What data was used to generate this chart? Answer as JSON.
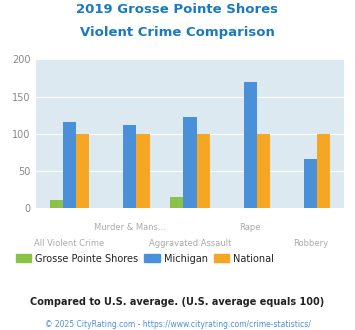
{
  "title_line1": "2019 Grosse Pointe Shores",
  "title_line2": "Violent Crime Comparison",
  "title_color": "#1a7abf",
  "cat_labels_row1": [
    "",
    "Murder & Mans...",
    "",
    "Rape",
    ""
  ],
  "cat_labels_row2": [
    "All Violent Crime",
    "",
    "Aggravated Assault",
    "",
    "Robbery"
  ],
  "grosse_pointe": [
    10,
    0,
    15,
    0,
    0
  ],
  "michigan": [
    116,
    112,
    123,
    170,
    66
  ],
  "national": [
    100,
    100,
    100,
    100,
    100
  ],
  "color_gps": "#8bc34a",
  "color_michigan": "#4a90d9",
  "color_national": "#f5a623",
  "ylim": [
    0,
    200
  ],
  "yticks": [
    0,
    50,
    100,
    150,
    200
  ],
  "background_color": "#dce9f0",
  "legend_labels": [
    "Grosse Pointe Shores",
    "Michigan",
    "National"
  ],
  "footnote1": "Compared to U.S. average. (U.S. average equals 100)",
  "footnote2": "© 2025 CityRating.com - https://www.cityrating.com/crime-statistics/",
  "footnote1_color": "#222222",
  "footnote2_color": "#4a90d9",
  "bar_width": 0.22,
  "grid_color": "#ffffff",
  "ytick_color": "#888888",
  "xtick_label_color": "#aaaaaa"
}
